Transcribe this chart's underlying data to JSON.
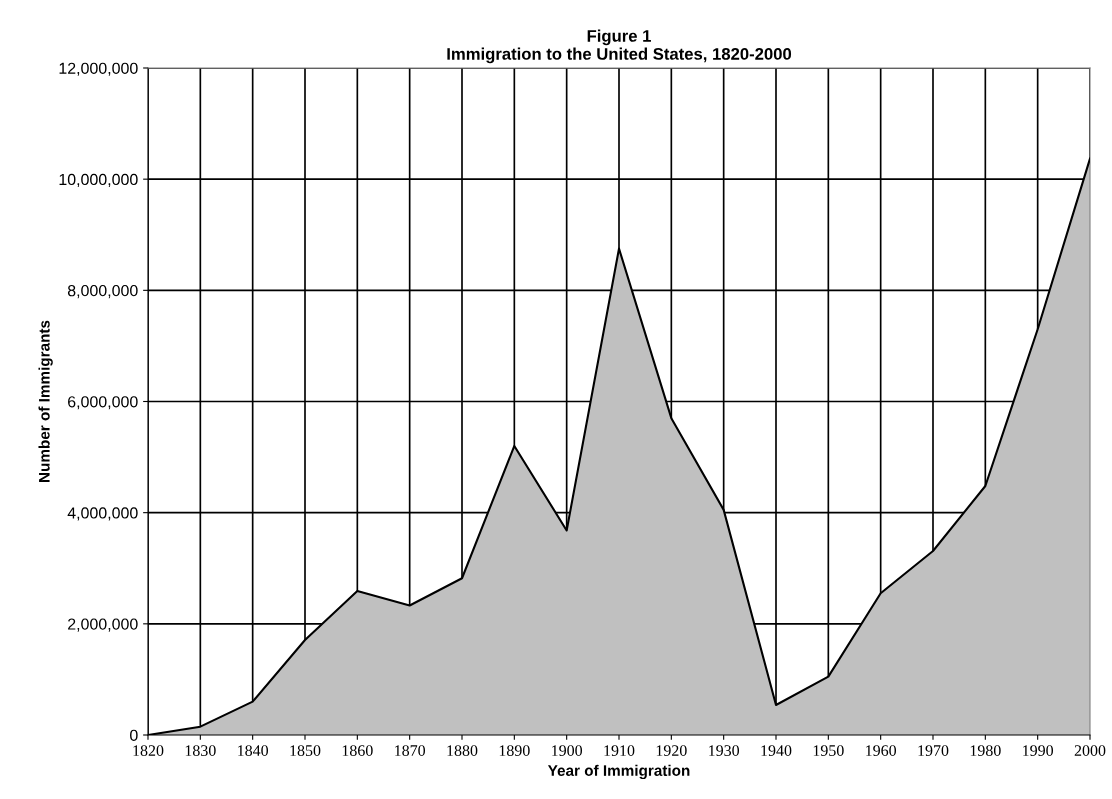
{
  "chart_data": {
    "type": "area",
    "title": "Figure 1\nImmigration to the United States, 1820-2000",
    "xlabel": "Year of Immigration",
    "ylabel": "Number of Immigrants",
    "categories": [
      "1820",
      "1830",
      "1840",
      "1850",
      "1860",
      "1870",
      "1880",
      "1890",
      "1900",
      "1910",
      "1920",
      "1930",
      "1940",
      "1950",
      "1960",
      "1970",
      "1980",
      "1990",
      "2000"
    ],
    "series": [
      {
        "color": "#c0c0c0",
        "values": [
          0,
          150000,
          600000,
          1710000,
          2590000,
          2330000,
          2820000,
          5200000,
          3680000,
          8750000,
          5700000,
          4050000,
          540000,
          1050000,
          2550000,
          3310000,
          4480000,
          7300000,
          10370000
        ]
      }
    ],
    "ylim": [
      0,
      12000000
    ],
    "yticks": [
      {
        "value": 0,
        "label": "0"
      },
      {
        "value": 2000000,
        "label": "2,000,000"
      },
      {
        "value": 4000000,
        "label": "4,000,000"
      },
      {
        "value": 6000000,
        "label": "6,000,000"
      },
      {
        "value": 8000000,
        "label": "8,000,000"
      },
      {
        "value": 10000000,
        "label": "10,000,000"
      },
      {
        "value": 12000000,
        "label": "12,000,000"
      }
    ],
    "grid": true,
    "legend": false
  }
}
